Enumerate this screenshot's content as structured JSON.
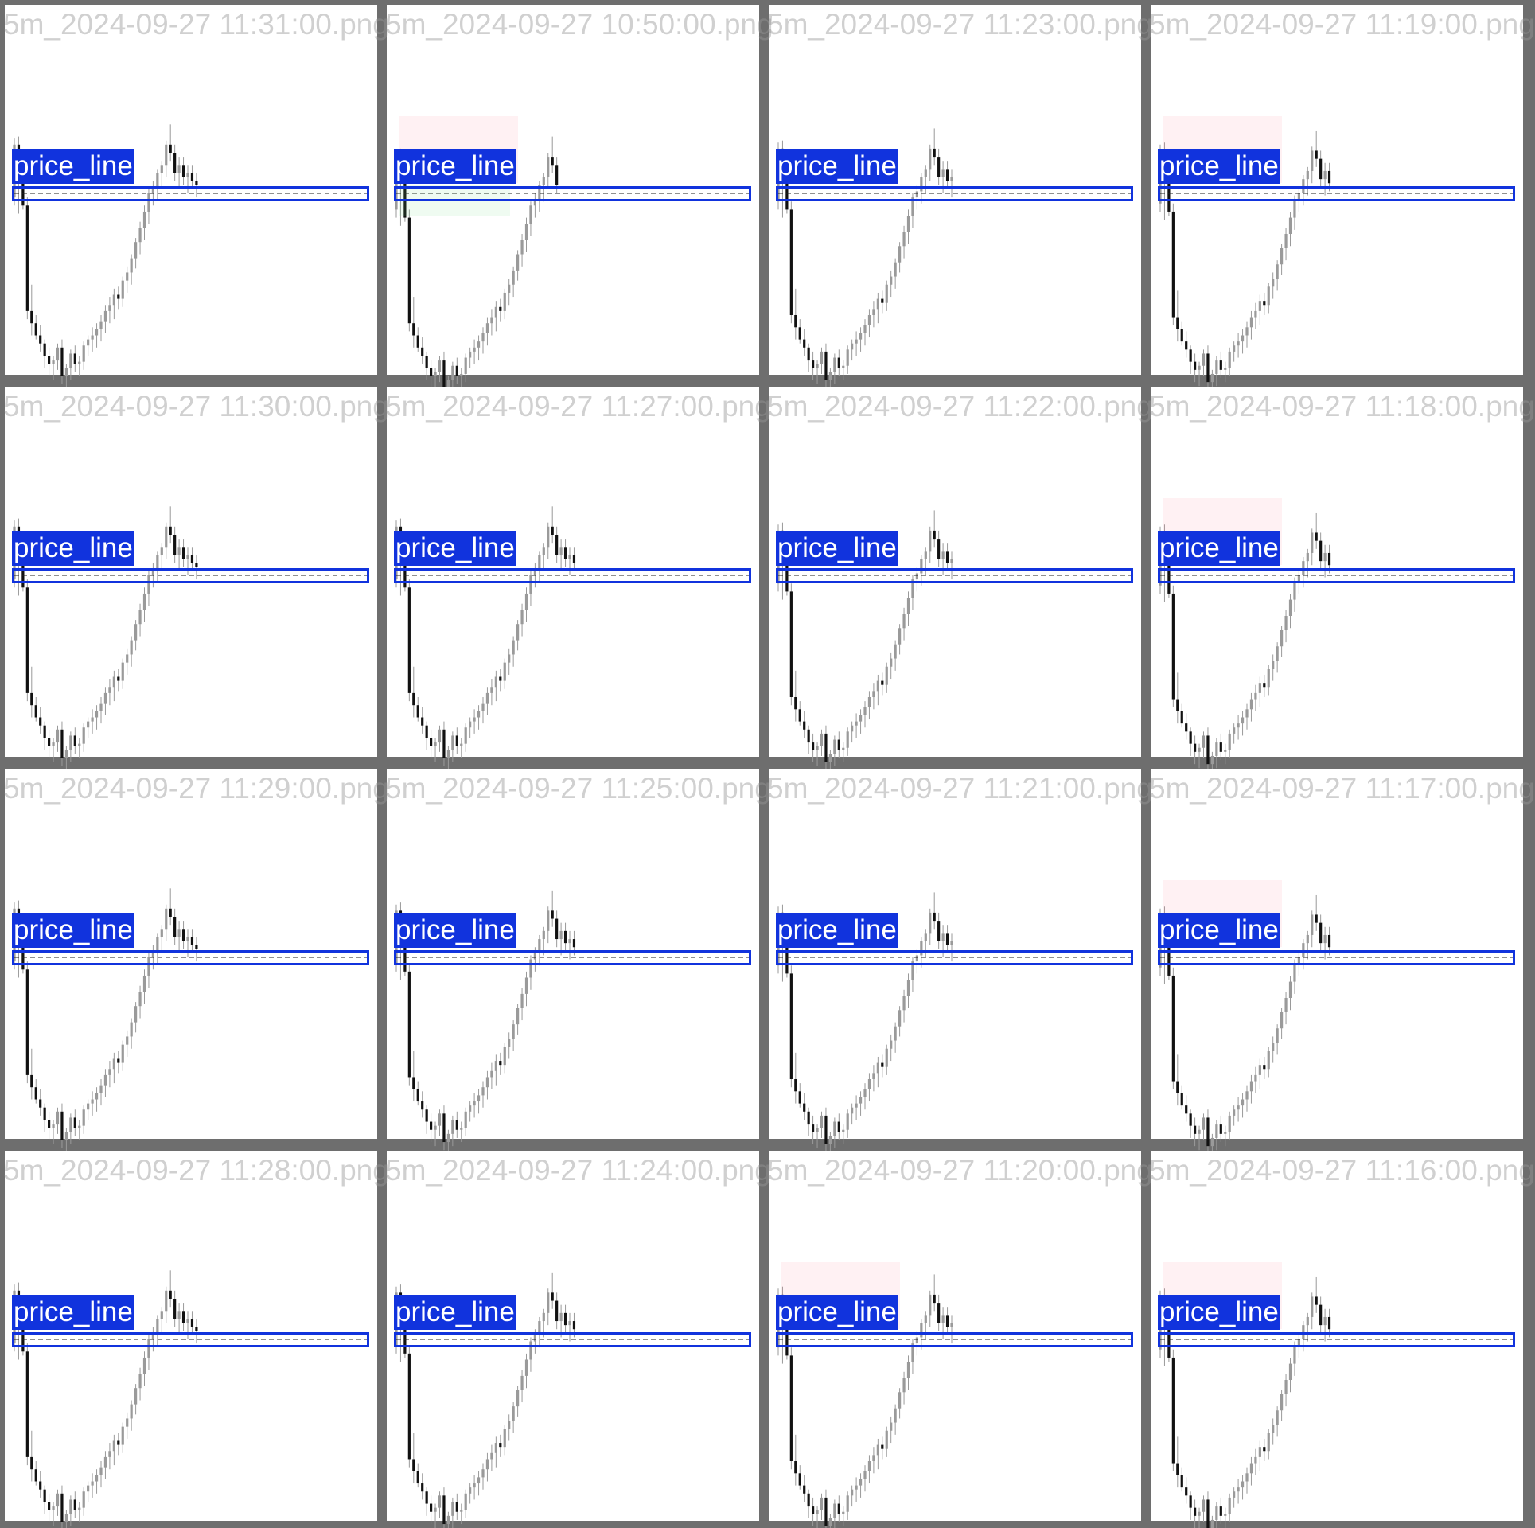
{
  "grid": {
    "rows": 4,
    "cols": 4
  },
  "colors": {
    "box": "#1133dd",
    "label_bg": "#1133dd",
    "label_text": "#ffffff",
    "bull": "#9a9a9a",
    "bear": "#111111",
    "frame": "#6e6e6e"
  },
  "detection_label": "price_line",
  "chart_data": {
    "type": "candlestick",
    "candles_ohlc": [
      [
        -2,
        27,
        -6,
        24
      ],
      [
        24,
        28,
        -10,
        12
      ],
      [
        12,
        14,
        -8,
        -6
      ],
      [
        -6,
        -2,
        -62,
        -58
      ],
      [
        -58,
        -45,
        -70,
        -64
      ],
      [
        -64,
        -60,
        -72,
        -70
      ],
      [
        -70,
        -65,
        -78,
        -74
      ],
      [
        -74,
        -72,
        -86,
        -80
      ],
      [
        -80,
        -76,
        -90,
        -84
      ],
      [
        -84,
        -80,
        -92,
        -82
      ],
      [
        -82,
        -74,
        -87,
        -76
      ],
      [
        -76,
        -72,
        -94,
        -90
      ],
      [
        -90,
        -84,
        -97,
        -86
      ],
      [
        -86,
        -77,
        -92,
        -79
      ],
      [
        -79,
        -75,
        -88,
        -84
      ],
      [
        -84,
        -80,
        -90,
        -83
      ],
      [
        -83,
        -73,
        -87,
        -75
      ],
      [
        -75,
        -70,
        -80,
        -72
      ],
      [
        -72,
        -66,
        -78,
        -70
      ],
      [
        -70,
        -64,
        -76,
        -67
      ],
      [
        -67,
        -60,
        -73,
        -63
      ],
      [
        -63,
        -55,
        -69,
        -58
      ],
      [
        -58,
        -51,
        -64,
        -55
      ],
      [
        -55,
        -47,
        -62,
        -50
      ],
      [
        -50,
        -46,
        -57,
        -52
      ],
      [
        -52,
        -41,
        -56,
        -43
      ],
      [
        -43,
        -36,
        -49,
        -39
      ],
      [
        -39,
        -30,
        -45,
        -32
      ],
      [
        -32,
        -22,
        -37,
        -24
      ],
      [
        -24,
        -14,
        -30,
        -17
      ],
      [
        -17,
        -6,
        -23,
        -9
      ],
      [
        -9,
        2,
        -15,
        0
      ],
      [
        0,
        6,
        -6,
        3
      ],
      [
        3,
        12,
        -3,
        10
      ],
      [
        10,
        16,
        2,
        14
      ],
      [
        14,
        26,
        8,
        24
      ],
      [
        24,
        34,
        16,
        20
      ],
      [
        20,
        24,
        6,
        10
      ],
      [
        10,
        18,
        2,
        14
      ],
      [
        14,
        18,
        4,
        8
      ],
      [
        8,
        14,
        0,
        10
      ],
      [
        10,
        14,
        2,
        6
      ],
      [
        6,
        10,
        -2,
        4
      ]
    ],
    "price_line_level": 0,
    "panels": [
      {
        "title": "5m_2024-09-27 11:31:00.png",
        "shift": 0,
        "n": 43
      },
      {
        "title": "5m_2024-09-27 10:50:00.png",
        "shift": -6,
        "n": 38
      },
      {
        "title": "5m_2024-09-27 11:23:00.png",
        "shift": -2,
        "n": 41
      },
      {
        "title": "5m_2024-09-27 11:19:00.png",
        "shift": -3,
        "n": 40
      },
      {
        "title": "5m_2024-09-27 11:30:00.png",
        "shift": 0,
        "n": 43
      },
      {
        "title": "5m_2024-09-27 11:27:00.png",
        "shift": 0,
        "n": 42
      },
      {
        "title": "5m_2024-09-27 11:22:00.png",
        "shift": -2,
        "n": 41
      },
      {
        "title": "5m_2024-09-27 11:18:00.png",
        "shift": -3,
        "n": 40
      },
      {
        "title": "5m_2024-09-27 11:29:00.png",
        "shift": 0,
        "n": 43
      },
      {
        "title": "5m_2024-09-27 11:25:00.png",
        "shift": -1,
        "n": 42
      },
      {
        "title": "5m_2024-09-27 11:21:00.png",
        "shift": -2,
        "n": 41
      },
      {
        "title": "5m_2024-09-27 11:17:00.png",
        "shift": -3,
        "n": 40
      },
      {
        "title": "5m_2024-09-27 11:28:00.png",
        "shift": 0,
        "n": 43
      },
      {
        "title": "5m_2024-09-27 11:24:00.png",
        "shift": -1,
        "n": 42
      },
      {
        "title": "5m_2024-09-27 11:20:00.png",
        "shift": -2,
        "n": 41
      },
      {
        "title": "5m_2024-09-27 11:16:00.png",
        "shift": -3,
        "n": 40
      }
    ]
  }
}
